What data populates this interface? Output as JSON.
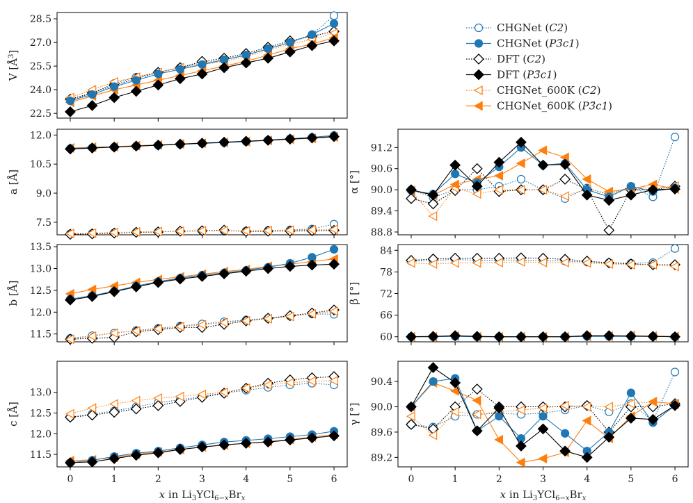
{
  "colors": {
    "blue": "#1f77b4",
    "orange": "#ff7f0e",
    "black": "#000000"
  },
  "legend": [
    {
      "key": "chg_c2",
      "label": "CHGNet (C2)"
    },
    {
      "key": "chg_p3",
      "label": "CHGNet (P3̄c1)"
    },
    {
      "key": "dft_c2",
      "label": "DFT (C2)"
    },
    {
      "key": "dft_p3",
      "label": "DFT (P3̄c1)"
    },
    {
      "key": "k600_c2",
      "label": "CHGNet_600K (C2)"
    },
    {
      "key": "k600_p3",
      "label": "CHGNet_600K (P3̄c1)"
    }
  ],
  "chart_data": [
    {
      "id": "V",
      "type": "line",
      "ylabel": "V [Å³]",
      "xlabel": "",
      "ylim": [
        22.2,
        28.9
      ],
      "yticks": [
        22.5,
        24.0,
        25.5,
        27.0,
        28.5
      ],
      "ytick_labels": [
        "22.5",
        "24.0",
        "25.5",
        "27.0",
        "28.5"
      ],
      "xticks": [
        0,
        1,
        2,
        3,
        4,
        5,
        6
      ],
      "xtick_labels": [],
      "x": [
        0,
        0.5,
        1,
        1.5,
        2,
        2.5,
        3,
        3.5,
        4,
        4.5,
        5,
        5.5,
        6
      ],
      "series": [
        {
          "key": "chg_c2",
          "values": [
            23.3,
            23.8,
            24.4,
            24.8,
            25.1,
            25.4,
            25.7,
            25.9,
            26.2,
            26.6,
            27.0,
            27.5,
            28.7
          ]
        },
        {
          "key": "chg_p3",
          "values": [
            23.3,
            23.7,
            24.2,
            24.6,
            25.0,
            25.3,
            25.6,
            25.9,
            26.2,
            26.6,
            27.0,
            27.5,
            28.2
          ]
        },
        {
          "key": "dft_c2",
          "values": [
            23.4,
            23.8,
            24.3,
            24.7,
            25.1,
            25.4,
            25.8,
            26.0,
            26.3,
            26.7,
            27.1,
            27.4,
            27.7
          ]
        },
        {
          "key": "dft_p3",
          "values": [
            22.6,
            23.0,
            23.5,
            23.9,
            24.3,
            24.7,
            25.0,
            25.4,
            25.7,
            26.0,
            26.4,
            26.8,
            27.1
          ]
        },
        {
          "key": "k600_c2",
          "values": [
            23.5,
            24.0,
            24.5,
            24.8,
            25.1,
            25.4,
            25.6,
            25.8,
            26.1,
            26.5,
            26.9,
            27.2,
            27.6
          ]
        },
        {
          "key": "k600_p3",
          "values": [
            23.2,
            23.6,
            24.0,
            24.3,
            24.6,
            24.9,
            25.2,
            25.5,
            25.8,
            26.2,
            26.6,
            26.9,
            27.3
          ]
        }
      ]
    },
    {
      "id": "a",
      "type": "line",
      "ylabel": "a [Å]",
      "xlabel": "",
      "ylim": [
        6.85,
        12.3
      ],
      "yticks": [
        7.5,
        9.0,
        10.5,
        12.0
      ],
      "ytick_labels": [
        "7.5",
        "9.0",
        "10.5",
        "12.0"
      ],
      "xticks": [
        0,
        1,
        2,
        3,
        4,
        5,
        6
      ],
      "xtick_labels": [],
      "x": [
        0,
        0.5,
        1,
        1.5,
        2,
        2.5,
        3,
        3.5,
        4,
        4.5,
        5,
        5.5,
        6
      ],
      "series": [
        {
          "key": "chg_c2",
          "values": [
            6.9,
            6.92,
            6.95,
            6.98,
            7.01,
            7.03,
            7.05,
            7.06,
            7.05,
            7.07,
            7.1,
            7.15,
            7.4
          ]
        },
        {
          "key": "chg_p3",
          "values": [
            11.3,
            11.35,
            11.38,
            11.43,
            11.47,
            11.52,
            11.57,
            11.61,
            11.66,
            11.74,
            11.81,
            11.88,
            11.98
          ]
        },
        {
          "key": "dft_c2",
          "values": [
            6.88,
            6.9,
            6.94,
            6.98,
            7.0,
            7.04,
            7.06,
            7.09,
            7.02,
            7.04,
            7.05,
            7.06,
            7.08
          ]
        },
        {
          "key": "dft_p3",
          "values": [
            11.28,
            11.33,
            11.38,
            11.43,
            11.48,
            11.53,
            11.58,
            11.63,
            11.68,
            11.73,
            11.79,
            11.85,
            11.92
          ]
        },
        {
          "key": "k600_c2",
          "values": [
            6.92,
            6.94,
            6.97,
            7.0,
            7.02,
            7.04,
            7.06,
            7.07,
            7.05,
            7.07,
            7.09,
            7.11,
            7.13
          ]
        },
        {
          "key": "k600_p3",
          "values": [
            11.33,
            11.37,
            11.4,
            11.45,
            11.49,
            11.54,
            11.58,
            11.62,
            11.66,
            11.72,
            11.78,
            11.83,
            11.9
          ]
        }
      ]
    },
    {
      "id": "b",
      "type": "line",
      "ylabel": "b [Å]",
      "xlabel": "",
      "ylim": [
        11.32,
        13.55
      ],
      "yticks": [
        11.5,
        12.0,
        12.5,
        13.0,
        13.5
      ],
      "ytick_labels": [
        "11.5",
        "12.0",
        "12.5",
        "13.0",
        "13.5"
      ],
      "xticks": [
        0,
        1,
        2,
        3,
        4,
        5,
        6
      ],
      "xtick_labels": [],
      "x": [
        0,
        0.5,
        1,
        1.5,
        2,
        2.5,
        3,
        3.5,
        4,
        4.5,
        5,
        5.5,
        6
      ],
      "series": [
        {
          "key": "chg_c2",
          "values": [
            11.4,
            11.46,
            11.52,
            11.58,
            11.63,
            11.68,
            11.73,
            11.78,
            11.82,
            11.86,
            11.91,
            11.96,
            11.95
          ]
        },
        {
          "key": "chg_p3",
          "values": [
            12.3,
            12.38,
            12.48,
            12.6,
            12.7,
            12.78,
            12.85,
            12.9,
            12.96,
            13.03,
            13.12,
            13.26,
            13.44
          ]
        },
        {
          "key": "dft_c2",
          "values": [
            11.38,
            11.4,
            11.42,
            11.55,
            11.6,
            11.65,
            11.65,
            11.72,
            11.8,
            11.86,
            11.92,
            11.98,
            12.05
          ]
        },
        {
          "key": "dft_p3",
          "values": [
            12.28,
            12.36,
            12.47,
            12.58,
            12.68,
            12.76,
            12.82,
            12.88,
            12.94,
            13.0,
            13.05,
            13.08,
            13.1
          ]
        },
        {
          "key": "k600_c2",
          "values": [
            11.38,
            11.45,
            11.52,
            11.57,
            11.62,
            11.67,
            11.71,
            11.76,
            11.8,
            11.85,
            11.9,
            11.96,
            12.02
          ]
        },
        {
          "key": "k600_p3",
          "values": [
            12.42,
            12.52,
            12.6,
            12.68,
            12.75,
            12.81,
            12.87,
            12.93,
            12.98,
            13.05,
            13.1,
            13.16,
            13.22
          ]
        }
      ]
    },
    {
      "id": "c",
      "type": "line",
      "ylabel": "c [Å]",
      "xlabel": "x in Li3YCl6−xBrx",
      "ylim": [
        11.2,
        13.75
      ],
      "yticks": [
        11.5,
        12.0,
        12.5,
        13.0
      ],
      "ytick_labels": [
        "11.5",
        "12.0",
        "12.5",
        "13.0"
      ],
      "xticks": [
        0,
        1,
        2,
        3,
        4,
        5,
        6
      ],
      "xtick_labels": [
        "0",
        "1",
        "2",
        "3",
        "4",
        "5",
        "6"
      ],
      "x": [
        0,
        0.5,
        1,
        1.5,
        2,
        2.5,
        3,
        3.5,
        4,
        4.5,
        5,
        5.5,
        6
      ],
      "series": [
        {
          "key": "chg_c2",
          "values": [
            12.4,
            12.48,
            12.55,
            12.65,
            12.75,
            12.82,
            12.9,
            12.98,
            13.05,
            13.12,
            13.18,
            13.22,
            13.18
          ]
        },
        {
          "key": "chg_p3",
          "values": [
            11.3,
            11.36,
            11.45,
            11.53,
            11.58,
            11.66,
            11.73,
            11.8,
            11.84,
            11.88,
            11.93,
            11.98,
            12.06
          ]
        },
        {
          "key": "dft_c2",
          "values": [
            12.4,
            12.45,
            12.52,
            12.6,
            12.68,
            12.78,
            12.88,
            12.98,
            13.1,
            13.22,
            13.3,
            13.35,
            13.38
          ]
        },
        {
          "key": "dft_p3",
          "values": [
            11.3,
            11.32,
            11.4,
            11.48,
            11.54,
            11.62,
            11.68,
            11.73,
            11.77,
            11.8,
            11.85,
            11.9,
            11.95
          ]
        },
        {
          "key": "k600_c2",
          "values": [
            12.48,
            12.62,
            12.72,
            12.8,
            12.86,
            12.9,
            12.95,
            13.0,
            13.1,
            13.18,
            13.23,
            13.27,
            13.28
          ]
        },
        {
          "key": "k600_p3",
          "values": [
            11.35,
            11.37,
            11.43,
            11.5,
            11.56,
            11.62,
            11.68,
            11.73,
            11.77,
            11.81,
            11.86,
            11.92,
            11.98
          ]
        }
      ]
    },
    {
      "id": "alpha",
      "type": "line",
      "ylabel": "α [°]",
      "xlabel": "",
      "ylim": [
        88.72,
        91.72
      ],
      "yticks": [
        88.8,
        89.4,
        90.0,
        90.6,
        91.2
      ],
      "ytick_labels": [
        "88.8",
        "89.4",
        "90.0",
        "90.6",
        "91.2"
      ],
      "xticks": [
        0,
        1,
        2,
        3,
        4,
        5,
        6
      ],
      "xtick_labels": [],
      "x": [
        0,
        0.5,
        1,
        1.5,
        2,
        2.5,
        3,
        3.5,
        4,
        4.5,
        5,
        5.5,
        6
      ],
      "series": [
        {
          "key": "chg_c2",
          "values": [
            90.0,
            89.78,
            90.0,
            90.0,
            90.1,
            90.3,
            90.0,
            89.75,
            90.05,
            89.85,
            90.1,
            89.8,
            91.5
          ]
        },
        {
          "key": "chg_p3",
          "values": [
            89.98,
            89.88,
            90.45,
            90.2,
            90.65,
            91.2,
            90.7,
            90.75,
            90.0,
            89.8,
            90.1,
            89.95,
            90.05
          ]
        },
        {
          "key": "dft_c2",
          "values": [
            89.75,
            89.6,
            89.98,
            90.6,
            89.95,
            90.0,
            90.0,
            90.3,
            90.0,
            88.85,
            90.0,
            90.0,
            90.1
          ]
        },
        {
          "key": "dft_p3",
          "values": [
            90.0,
            89.85,
            90.7,
            90.1,
            90.78,
            91.35,
            90.7,
            90.72,
            89.85,
            89.7,
            89.85,
            90.0,
            90.02
          ]
        },
        {
          "key": "k600_c2",
          "values": [
            89.95,
            89.25,
            90.05,
            89.88,
            90.0,
            90.0,
            90.0,
            89.82,
            90.02,
            89.9,
            90.05,
            90.05,
            90.1
          ]
        },
        {
          "key": "k600_p3",
          "values": [
            89.98,
            89.85,
            90.15,
            90.3,
            90.4,
            90.75,
            91.12,
            90.92,
            90.3,
            89.95,
            90.02,
            90.15,
            90.02
          ]
        }
      ]
    },
    {
      "id": "beta",
      "type": "line",
      "ylabel": "β [°]",
      "xlabel": "",
      "ylim": [
        58.6,
        85.6
      ],
      "yticks": [
        60,
        66,
        72,
        78,
        84
      ],
      "ytick_labels": [
        "60",
        "66",
        "72",
        "78",
        "84"
      ],
      "xticks": [
        0,
        1,
        2,
        3,
        4,
        5,
        6
      ],
      "xtick_labels": [],
      "x": [
        0,
        0.5,
        1,
        1.5,
        2,
        2.5,
        3,
        3.5,
        4,
        4.5,
        5,
        5.5,
        6
      ],
      "series": [
        {
          "key": "chg_c2",
          "values": [
            81.0,
            81.2,
            81.5,
            81.2,
            81.3,
            81.3,
            81.2,
            81.0,
            80.8,
            80.6,
            80.4,
            80.6,
            84.5
          ]
        },
        {
          "key": "chg_p3",
          "values": [
            60.0,
            60.0,
            60.1,
            60.0,
            60.0,
            60.0,
            60.0,
            60.0,
            60.1,
            60.1,
            60.1,
            60.1,
            60.0
          ]
        },
        {
          "key": "dft_c2",
          "values": [
            81.2,
            81.6,
            81.8,
            81.8,
            81.8,
            81.9,
            81.8,
            81.5,
            81.0,
            80.5,
            80.2,
            80.0,
            80.0
          ]
        },
        {
          "key": "dft_p3",
          "values": [
            60.0,
            60.1,
            60.3,
            60.1,
            60.0,
            60.0,
            60.0,
            60.0,
            60.3,
            60.3,
            60.2,
            60.1,
            60.0
          ]
        },
        {
          "key": "k600_c2",
          "values": [
            80.5,
            80.2,
            80.5,
            80.5,
            80.6,
            80.8,
            80.6,
            80.6,
            80.5,
            80.2,
            80.0,
            80.0,
            79.5
          ]
        },
        {
          "key": "k600_p3",
          "values": [
            60.0,
            60.0,
            60.2,
            60.0,
            60.0,
            60.0,
            60.0,
            60.0,
            60.1,
            60.2,
            60.3,
            60.2,
            60.1
          ]
        }
      ]
    },
    {
      "id": "gamma",
      "type": "line",
      "ylabel": "γ [°]",
      "xlabel": "x in Li3YCl6−xBrx",
      "ylim": [
        89.05,
        90.72
      ],
      "yticks": [
        89.2,
        89.6,
        90.0,
        90.4
      ],
      "ytick_labels": [
        "89.2",
        "89.6",
        "90.0",
        "90.4"
      ],
      "xticks": [
        0,
        1,
        2,
        3,
        4,
        5,
        6
      ],
      "xtick_labels": [
        "0",
        "1",
        "2",
        "3",
        "4",
        "5",
        "6"
      ],
      "x": [
        0,
        0.5,
        1,
        1.5,
        2,
        2.5,
        3,
        3.5,
        4,
        4.5,
        5,
        5.5,
        6
      ],
      "series": [
        {
          "key": "chg_c2",
          "values": [
            89.72,
            89.68,
            89.85,
            89.88,
            89.9,
            89.88,
            89.9,
            89.95,
            90.02,
            89.92,
            90.05,
            89.78,
            90.55
          ]
        },
        {
          "key": "chg_p3",
          "values": [
            90.0,
            90.4,
            90.45,
            89.62,
            89.85,
            89.5,
            89.85,
            89.58,
            89.3,
            89.6,
            90.22,
            89.75,
            90.02
          ]
        },
        {
          "key": "dft_c2",
          "values": [
            89.72,
            89.65,
            90.0,
            90.28,
            90.0,
            90.0,
            90.0,
            90.0,
            90.02,
            89.6,
            90.0,
            90.0,
            90.05
          ]
        },
        {
          "key": "dft_p3",
          "values": [
            90.0,
            90.62,
            90.38,
            89.62,
            89.98,
            89.38,
            89.65,
            89.3,
            89.2,
            89.52,
            89.82,
            89.8,
            90.02
          ]
        },
        {
          "key": "k600_c2",
          "values": [
            89.85,
            89.55,
            89.92,
            89.88,
            89.92,
            89.95,
            89.98,
            90.02,
            90.0,
            90.0,
            90.05,
            90.08,
            90.05
          ]
        },
        {
          "key": "k600_p3",
          "values": [
            90.0,
            90.38,
            90.25,
            90.1,
            89.48,
            89.12,
            89.18,
            89.28,
            89.78,
            89.5,
            89.85,
            90.08,
            90.05
          ]
        }
      ]
    }
  ]
}
